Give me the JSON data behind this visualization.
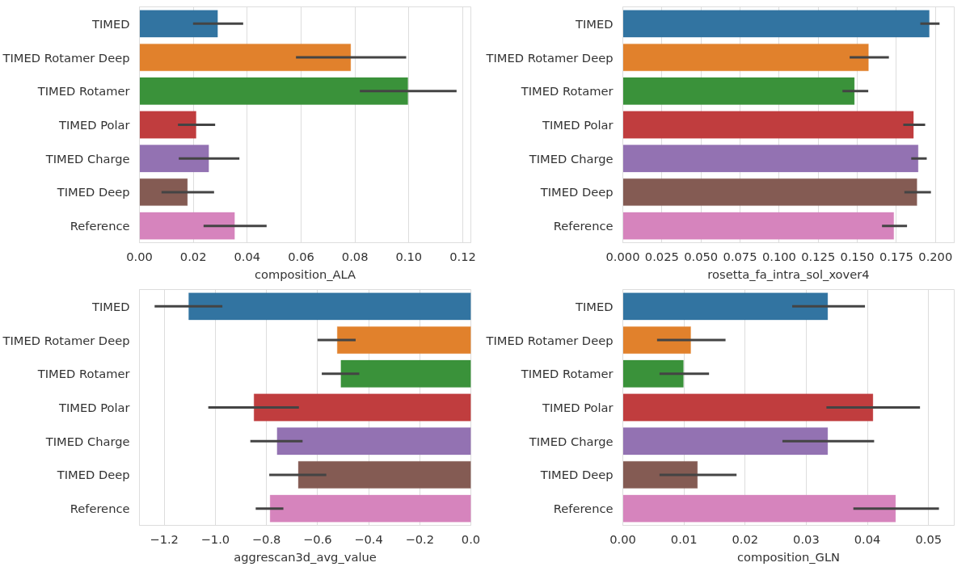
{
  "chart_data": [
    {
      "type": "bar",
      "orientation": "horizontal",
      "xlabel": "composition_ALA",
      "categories": [
        "TIMED",
        "TIMED Rotamer Deep",
        "TIMED Rotamer",
        "TIMED Polar",
        "TIMED Charge",
        "TIMED Deep",
        "Reference"
      ],
      "values": [
        0.029,
        0.0784,
        0.0996,
        0.021,
        0.0257,
        0.0178,
        0.0353
      ],
      "errors": [
        [
          0.0199,
          0.0385
        ],
        [
          0.0581,
          0.099
        ],
        [
          0.0818,
          0.1177
        ],
        [
          0.0143,
          0.0281
        ],
        [
          0.0146,
          0.0371
        ],
        [
          0.0082,
          0.0277
        ],
        [
          0.0238,
          0.0472
        ]
      ],
      "colors": [
        "#3274a1",
        "#e1812c",
        "#3a923a",
        "#c03d3e",
        "#9372b2",
        "#845b53",
        "#d684bd"
      ],
      "xlim": [
        0,
        0.123
      ],
      "xticks": [
        {
          "value": 0,
          "label": "0.00"
        },
        0.02,
        0.04,
        0.06,
        0.08,
        {
          "value": 0.1,
          "label": "0.10"
        },
        0.12
      ],
      "grid": "x"
    },
    {
      "type": "bar",
      "orientation": "horizontal",
      "xlabel": "rosetta_fa_intra_sol_xover4",
      "categories": [
        "TIMED",
        "TIMED Rotamer Deep",
        "TIMED Rotamer",
        "TIMED Polar",
        "TIMED Charge",
        "TIMED Deep",
        "Reference"
      ],
      "values": [
        0.196,
        0.1571,
        0.1481,
        0.1859,
        0.1889,
        0.1881,
        0.1733
      ],
      "errors": [
        [
          0.1903,
          0.2026
        ],
        [
          0.1451,
          0.1702
        ],
        [
          0.1405,
          0.157
        ],
        [
          0.1794,
          0.1934
        ],
        [
          0.1845,
          0.1944
        ],
        [
          0.1801,
          0.1971
        ],
        [
          0.1658,
          0.1818
        ]
      ],
      "colors": [
        "#3274a1",
        "#e1812c",
        "#3a923a",
        "#c03d3e",
        "#9372b2",
        "#845b53",
        "#d684bd"
      ],
      "xlim": [
        0,
        0.212
      ],
      "xticks": [
        {
          "value": 0,
          "label": "0.000"
        },
        0.025,
        {
          "value": 0.05,
          "label": "0.050"
        },
        0.075,
        {
          "value": 0.1,
          "label": "0.100"
        },
        0.125,
        {
          "value": 0.15,
          "label": "0.150"
        },
        0.175,
        {
          "value": 0.2,
          "label": "0.200"
        }
      ],
      "grid": "x"
    },
    {
      "type": "bar",
      "orientation": "horizontal",
      "xlabel": "aggrescan3d_avg_value",
      "categories": [
        "TIMED",
        "TIMED Rotamer Deep",
        "TIMED Rotamer",
        "TIMED Polar",
        "TIMED Charge",
        "TIMED Deep",
        "Reference"
      ],
      "values": [
        -1.104,
        -0.5227,
        -0.5083,
        -0.8486,
        -0.758,
        -0.6751,
        -0.7856
      ],
      "errors": [
        [
          -1.2376,
          -0.9724
        ],
        [
          -0.6,
          -0.4508
        ],
        [
          -0.5834,
          -0.4365
        ],
        [
          -1.0276,
          -0.6729
        ],
        [
          -0.863,
          -0.6586
        ],
        [
          -0.789,
          -0.5657
        ],
        [
          -0.842,
          -0.7337
        ]
      ],
      "colors": [
        "#3274a1",
        "#e1812c",
        "#3a923a",
        "#c03d3e",
        "#9372b2",
        "#845b53",
        "#d684bd"
      ],
      "xlim": [
        -1.297,
        0
      ],
      "xticks": [
        {
          "value": -1.2,
          "label": "−1.2"
        },
        {
          "value": -1.0,
          "label": "−1.0"
        },
        {
          "value": -0.8,
          "label": "−0.8"
        },
        {
          "value": -0.6,
          "label": "−0.6"
        },
        {
          "value": -0.4,
          "label": "−0.4"
        },
        {
          "value": -0.2,
          "label": "−0.2"
        },
        {
          "value": 0,
          "label": "0.0"
        }
      ],
      "grid": "x"
    },
    {
      "type": "bar",
      "orientation": "horizontal",
      "xlabel": "composition_GLN",
      "categories": [
        "TIMED",
        "TIMED Rotamer Deep",
        "TIMED Rotamer",
        "TIMED Polar",
        "TIMED Charge",
        "TIMED Deep",
        "Reference"
      ],
      "values": [
        0.0335,
        0.0111,
        0.0099,
        0.0409,
        0.0335,
        0.0122,
        0.0446
      ],
      "errors": [
        [
          0.0277,
          0.0396
        ],
        [
          0.0056,
          0.0168
        ],
        [
          0.006,
          0.0141
        ],
        [
          0.0333,
          0.0486
        ],
        [
          0.0261,
          0.0411
        ],
        [
          0.006,
          0.0186
        ],
        [
          0.0377,
          0.0517
        ]
      ],
      "colors": [
        "#3274a1",
        "#e1812c",
        "#3a923a",
        "#c03d3e",
        "#9372b2",
        "#845b53",
        "#d684bd"
      ],
      "xlim": [
        0,
        0.0542
      ],
      "xticks": [
        {
          "value": 0,
          "label": "0.00"
        },
        0.01,
        0.02,
        0.03,
        0.04,
        0.05
      ],
      "grid": "x"
    }
  ]
}
